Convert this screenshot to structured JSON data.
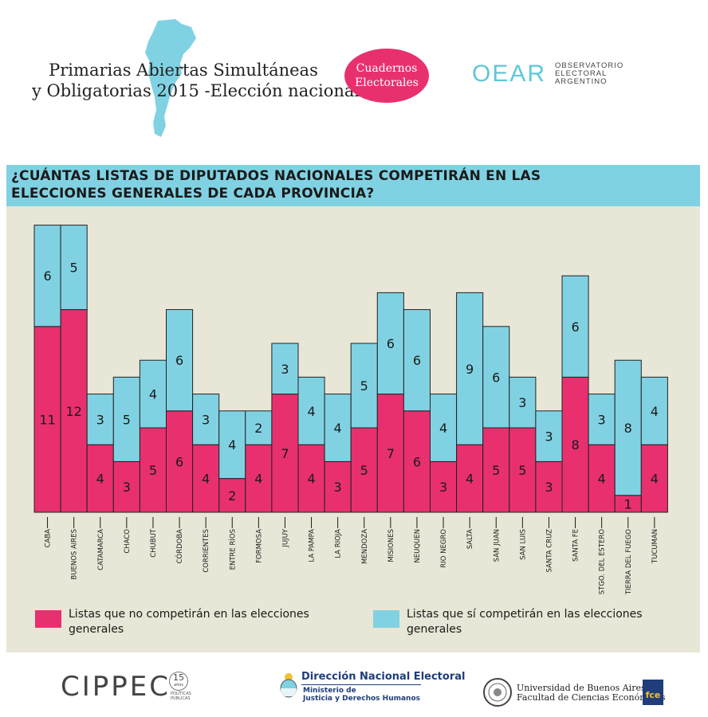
{
  "header": {
    "title_line1": "Primarias Abiertas Simultáneas",
    "title_line2": "y Obligatorias 2015 -Elección nacional",
    "badge_line1": "Cuadernos",
    "badge_line2": "Electorales",
    "oear_mark": "OEAR",
    "oear_line1": "OBSERVATORIO",
    "oear_line2": "ELECTORAL",
    "oear_line3": "ARGENTINO"
  },
  "question": {
    "line1": "¿CUÁNTAS LISTAS DE DIPUTADOS NACIONALES COMPETIRÁN EN LAS",
    "line2": "ELECCIONES GENERALES DE CADA PROVINCIA?"
  },
  "chart_data": {
    "type": "bar",
    "stacked": true,
    "categories": [
      "CABA",
      "BUENOS AIRES",
      "CATAMARCA",
      "CHACO",
      "CHUBUT",
      "CÓRDOBA",
      "CORRIENTES",
      "ENTRE RÍOS",
      "FORMOSA",
      "JUJUY",
      "LA PAMPA",
      "LA RIOJA",
      "MENDOZA",
      "MISIONES",
      "NEUQUEN",
      "RIO NEGRO",
      "SALTA",
      "SAN JUAN",
      "SAN LUIS",
      "SANTA CRUZ",
      "SANTA FE",
      "STGO. DEL ESTERO",
      "TIERRA DEL FUEGO",
      "TUCUMAN"
    ],
    "series": [
      {
        "name": "Listas que no competirán en las elecciones generales",
        "color": "#e8306f",
        "values": [
          11,
          12,
          4,
          3,
          5,
          6,
          4,
          2,
          4,
          7,
          4,
          3,
          5,
          7,
          6,
          3,
          4,
          5,
          5,
          3,
          8,
          4,
          1,
          4
        ]
      },
      {
        "name": "Listas que sí competirán en las elecciones generales",
        "color": "#80d2e3",
        "values": [
          6,
          5,
          3,
          5,
          4,
          6,
          3,
          4,
          2,
          3,
          4,
          4,
          5,
          6,
          6,
          4,
          9,
          6,
          3,
          3,
          6,
          3,
          8,
          4
        ]
      }
    ],
    "title": "¿CUÁNTAS LISTAS DE DIPUTADOS NACIONALES COMPETIRÁN EN LAS ELECCIONES GENERALES DE CADA PROVINCIA?",
    "ylim": [
      0,
      17
    ]
  },
  "legend": {
    "pink_label": "Listas que no competirán en las elecciones generales",
    "blue_label": "Listas que sí competirán en las elecciones generales"
  },
  "footer": {
    "cippec": "CIPPEC",
    "cippec_years": "15",
    "cippec_anos": "años",
    "cippec_sub1": "POLÍTICAS",
    "cippec_sub2": "PÚBLICAS",
    "dne_title": "Dirección Nacional Electoral",
    "dne_line1": "Ministerio de",
    "dne_line2": "Justicia y Derechos Humanos",
    "uba_line1": "Universidad de Buenos Aires",
    "uba_line2": "Facultad de Ciencias Económicas",
    "fce": "fce"
  }
}
